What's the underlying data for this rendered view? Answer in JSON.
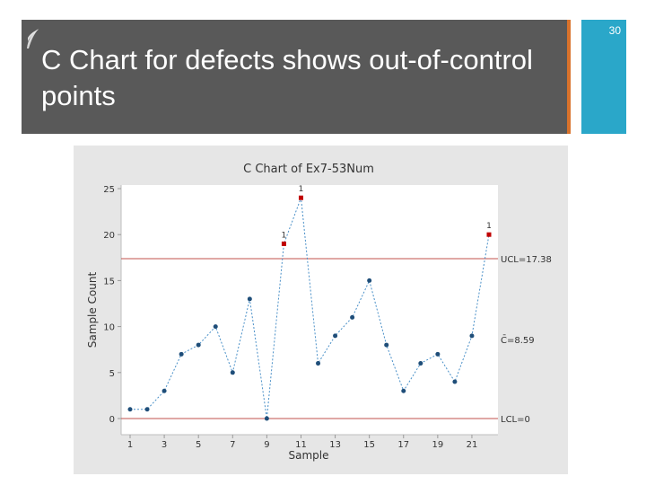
{
  "slide": {
    "title": "C Chart for defects shows out-of-control points",
    "page_number": "30",
    "colors": {
      "band": "#595959",
      "accent_orange": "#d9722b",
      "accent_blue": "#2aa7c9"
    },
    "icon": "leaf-icon"
  },
  "chart_data": {
    "type": "line",
    "title": "C Chart of Ex7-53Num",
    "xlabel": "Sample",
    "ylabel": "Sample Count",
    "xlim": [
      1,
      22
    ],
    "ylim": [
      0,
      25
    ],
    "x_ticks": [
      1,
      3,
      5,
      7,
      9,
      11,
      13,
      15,
      17,
      19,
      21
    ],
    "y_ticks": [
      0,
      5,
      10,
      15,
      20,
      25
    ],
    "grid": false,
    "series": [
      {
        "x": [
          1,
          2,
          3,
          4,
          5,
          6,
          7,
          8,
          9,
          10,
          11,
          12,
          13,
          14,
          15,
          16,
          17,
          18,
          19,
          20,
          21,
          22
        ],
        "values": [
          1,
          1,
          3,
          7,
          8,
          10,
          5,
          13,
          0,
          19,
          24,
          6,
          9,
          11,
          15,
          8,
          3,
          6,
          7,
          4,
          9,
          20
        ],
        "out_of_control": [
          10,
          11,
          22
        ],
        "flag_label": "1"
      }
    ],
    "control_limits": {
      "ucl": {
        "label": "UCL=17.38",
        "value": 17.38
      },
      "center": {
        "label": "C̄=8.59",
        "value": 8.59
      },
      "lcl": {
        "label": "LCL=0",
        "value": 0
      }
    },
    "colors": {
      "line": "#4a90c8",
      "point": "#1f4e79",
      "flag": "#c00000",
      "limit": "#c0504d"
    }
  }
}
